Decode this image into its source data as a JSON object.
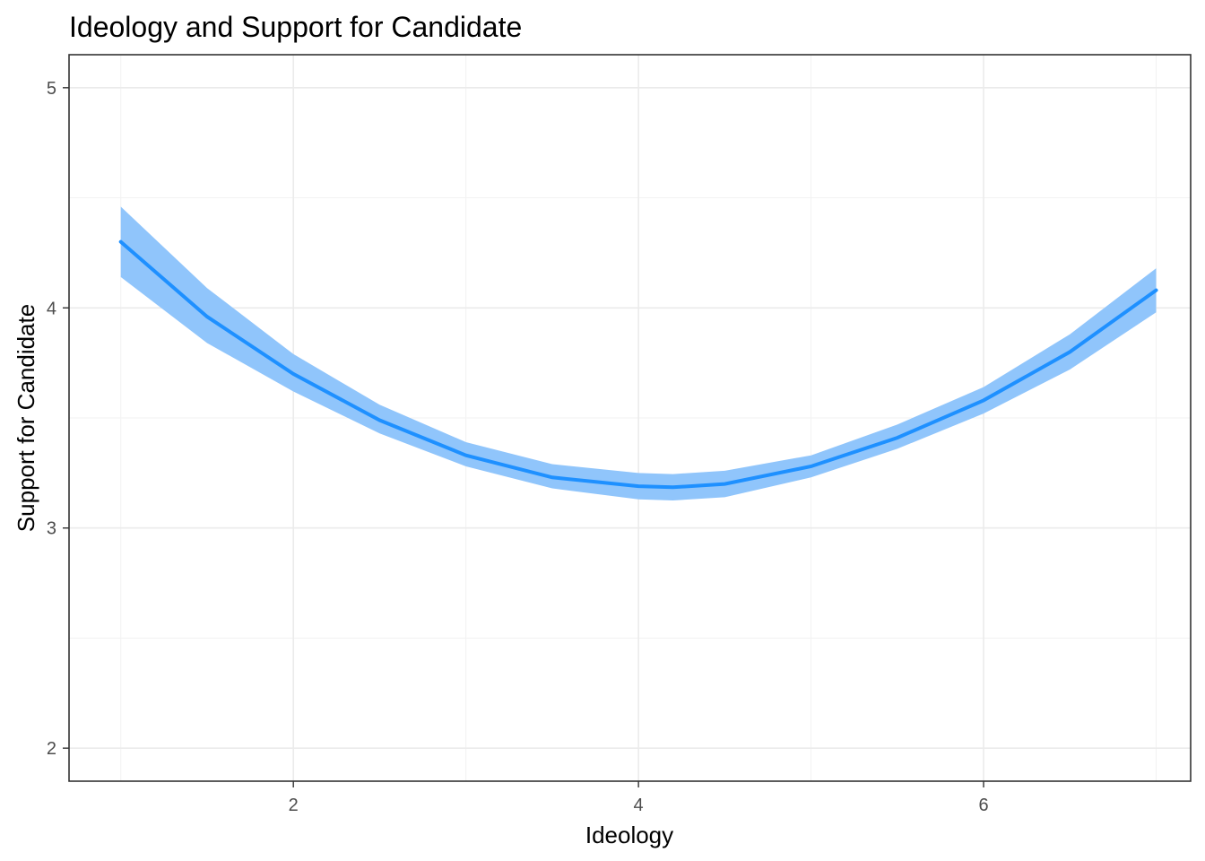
{
  "chart_data": {
    "type": "line",
    "title": "Ideology and Support for Candidate",
    "xlabel": "Ideology",
    "ylabel": "Support for Candidate",
    "xlim": [
      0.7,
      7.2
    ],
    "ylim": [
      1.85,
      5.15
    ],
    "x_ticks": [
      2,
      4,
      6
    ],
    "x_minor_ticks": [
      1,
      3,
      5,
      7
    ],
    "y_ticks": [
      2,
      3,
      4,
      5
    ],
    "y_minor_ticks": [
      2.5,
      3.5,
      4.5
    ],
    "grid": true,
    "legend": "none",
    "line_color": "#1E90FF",
    "band_color": "#90C5FB",
    "series": [
      {
        "x": [
          1.0,
          1.5,
          2.0,
          2.5,
          3.0,
          3.5,
          4.0,
          4.2,
          4.5,
          5.0,
          5.5,
          6.0,
          6.5,
          7.0
        ],
        "y": [
          4.3,
          3.96,
          3.7,
          3.49,
          3.33,
          3.23,
          3.19,
          3.185,
          3.2,
          3.28,
          3.41,
          3.58,
          3.8,
          4.08
        ],
        "lower": [
          4.14,
          3.84,
          3.62,
          3.43,
          3.28,
          3.18,
          3.13,
          3.125,
          3.14,
          3.23,
          3.36,
          3.52,
          3.72,
          3.98
        ],
        "upper": [
          4.46,
          4.09,
          3.79,
          3.56,
          3.39,
          3.29,
          3.25,
          3.245,
          3.26,
          3.33,
          3.47,
          3.64,
          3.88,
          4.18
        ]
      }
    ]
  }
}
